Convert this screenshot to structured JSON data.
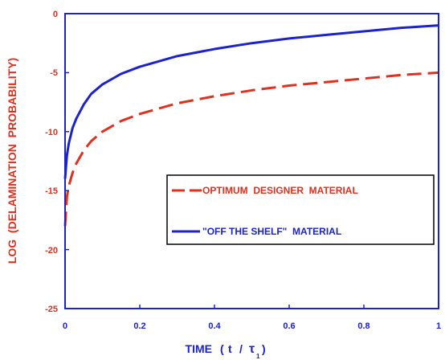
{
  "chart_data": {
    "type": "line",
    "xlabel": "TIME",
    "xlabel_expr_open": "(",
    "xlabel_expr_t": "t",
    "xlabel_expr_slash": "/",
    "xlabel_expr_tau": "τ",
    "xlabel_expr_sub": "1",
    "xlabel_expr_close": ")",
    "ylabel": "LOG  (DELAMINATION  PROBABILITY)",
    "xlim": [
      0,
      1
    ],
    "ylim": [
      -25,
      0
    ],
    "x_ticks": [
      "0",
      "0.2",
      "0.4",
      "0.6",
      "0.8",
      "1"
    ],
    "x_tick_values": [
      0,
      0.2,
      0.4,
      0.6,
      0.8,
      1
    ],
    "y_ticks": [
      "0",
      "-5",
      "-10",
      "-15",
      "-20",
      "-25"
    ],
    "y_tick_values": [
      0,
      -5,
      -10,
      -15,
      -20,
      -25
    ],
    "grid": false,
    "legend_position": "center-right",
    "series": [
      {
        "name": "OPTIMUM  DESIGNER  MATERIAL",
        "color": "#e0301e",
        "style": "dashed",
        "x": [
          0,
          0.005,
          0.01,
          0.02,
          0.03,
          0.05,
          0.07,
          0.1,
          0.15,
          0.2,
          0.3,
          0.4,
          0.5,
          0.6,
          0.7,
          0.8,
          0.9,
          1.0
        ],
        "y": [
          -18.0,
          -15.5,
          -14.6,
          -13.5,
          -12.7,
          -11.6,
          -10.8,
          -10.0,
          -9.1,
          -8.5,
          -7.6,
          -7.0,
          -6.5,
          -6.1,
          -5.8,
          -5.5,
          -5.2,
          -5.0
        ]
      },
      {
        "name": "\"OFF THE SHELF\"  MATERIAL",
        "color": "#1c22cc",
        "style": "solid",
        "x": [
          0,
          0.005,
          0.01,
          0.02,
          0.03,
          0.05,
          0.07,
          0.1,
          0.15,
          0.2,
          0.3,
          0.4,
          0.5,
          0.6,
          0.7,
          0.8,
          0.9,
          1.0
        ],
        "y": [
          -14.0,
          -12.0,
          -11.0,
          -9.7,
          -8.9,
          -7.7,
          -6.8,
          -6.0,
          -5.1,
          -4.5,
          -3.6,
          -3.0,
          -2.5,
          -2.1,
          -1.8,
          -1.5,
          -1.2,
          -1.0
        ]
      }
    ]
  }
}
